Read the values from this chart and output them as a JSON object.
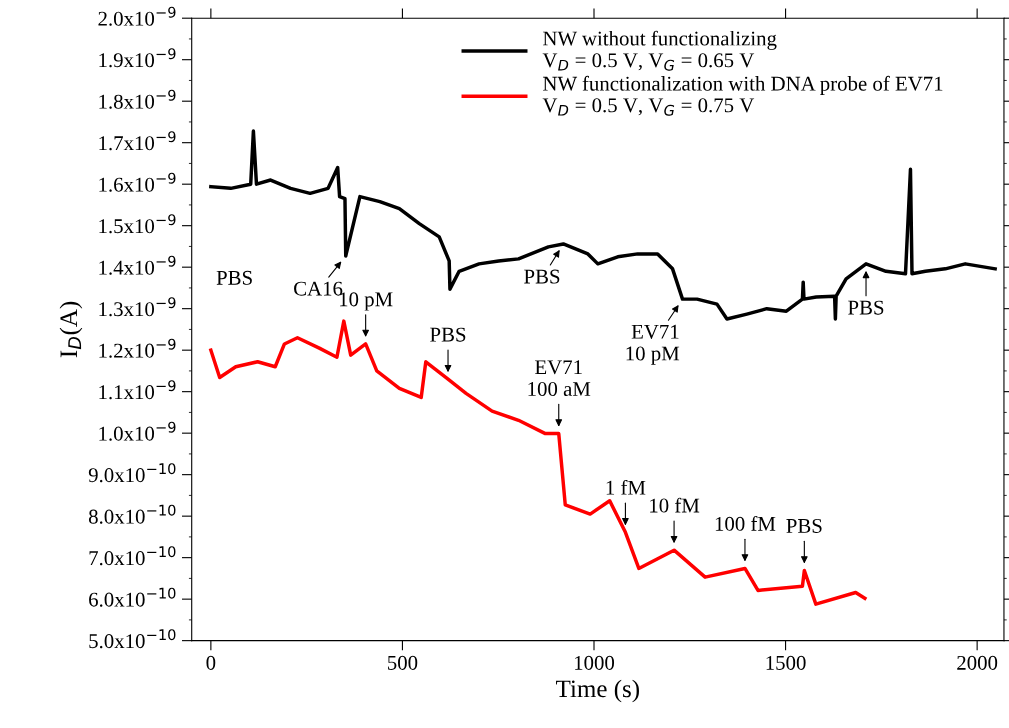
{
  "chart_data": {
    "type": "line",
    "xlabel": "Time (s)",
    "ylabel": "I$_{D}$(A)",
    "xlim": [
      -50,
      2070
    ],
    "xticks": [
      0,
      500,
      1000,
      1500,
      2000
    ],
    "ylim": [
      5e-10,
      2e-09
    ],
    "yticks": [
      {
        "value": 5e-10,
        "label": "5.0x10$^{−10}$"
      },
      {
        "value": 6e-10,
        "label": "6.0x10$^{−10}$"
      },
      {
        "value": 7e-10,
        "label": "7.0x10$^{−10}$"
      },
      {
        "value": 8e-10,
        "label": "8.0x10$^{−10}$"
      },
      {
        "value": 9e-10,
        "label": "9.0x10$^{−10}$"
      },
      {
        "value": 1e-09,
        "label": "1.0x10$^{−9}$"
      },
      {
        "value": 1.1e-09,
        "label": "1.1x10$^{−9}$"
      },
      {
        "value": 1.2e-09,
        "label": "1.2x10$^{−9}$"
      },
      {
        "value": 1.3e-09,
        "label": "1.3x10$^{−9}$"
      },
      {
        "value": 1.4e-09,
        "label": "1.4x10$^{−9}$"
      },
      {
        "value": 1.5e-09,
        "label": "1.5x10$^{−9}$"
      },
      {
        "value": 1.6e-09,
        "label": "1.6x10$^{−9}$"
      },
      {
        "value": 1.7e-09,
        "label": "1.7x10$^{−9}$"
      },
      {
        "value": 1.8e-09,
        "label": "1.8x10$^{−9}$"
      },
      {
        "value": 1.9e-09,
        "label": "1.9x10$^{−9}$"
      },
      {
        "value": 2e-09,
        "label": "2.0x10$^{−9}$"
      }
    ],
    "grid": false,
    "legend": "top",
    "line_style": "solid",
    "marker": "none",
    "series": [
      {
        "name": "NW without functionalizing\nV$_{D}$ = 0.5 V, V$_{G}$ = 0.65 V",
        "color": "#000000",
        "x": [
          0,
          52,
          104,
          111,
          119,
          156,
          208,
          259,
          306,
          331,
          336,
          350,
          352,
          389,
          441,
          492,
          544,
          596,
          622,
          624,
          648,
          700,
          751,
          803,
          881,
          920,
          984,
          1010,
          1062,
          1114,
          1166,
          1205,
          1231,
          1269,
          1321,
          1347,
          1399,
          1451,
          1502,
          1544,
          1546,
          1548,
          1580,
          1628,
          1630,
          1632,
          1658,
          1710,
          1762,
          1813,
          1826,
          1830,
          1865,
          1917,
          1969,
          2047
        ],
        "values": [
          1.594e-09,
          1.59e-09,
          1.6e-09,
          1.728e-09,
          1.6e-09,
          1.61e-09,
          1.59e-09,
          1.578e-09,
          1.59e-09,
          1.64e-09,
          1.57e-09,
          1.565e-09,
          1.427e-09,
          1.57e-09,
          1.558e-09,
          1.541e-09,
          1.505e-09,
          1.473e-09,
          1.415e-09,
          1.347e-09,
          1.39e-09,
          1.408e-09,
          1.415e-09,
          1.42e-09,
          1.449e-09,
          1.456e-09,
          1.432e-09,
          1.408e-09,
          1.425e-09,
          1.432e-09,
          1.432e-09,
          1.396e-09,
          1.323e-09,
          1.323e-09,
          1.311e-09,
          1.275e-09,
          1.287e-09,
          1.3e-09,
          1.294e-09,
          1.323e-09,
          1.364e-09,
          1.323e-09,
          1.328e-09,
          1.33e-09,
          1.275e-09,
          1.33e-09,
          1.372e-09,
          1.408e-09,
          1.39e-09,
          1.384e-09,
          1.636e-09,
          1.384e-09,
          1.39e-09,
          1.396e-09,
          1.408e-09,
          1.396e-09
        ]
      },
      {
        "name": "NW functionalization with DNA probe of EV71\nV$_{D}$ = 0.5 V, V$_{G}$ = 0.75 V",
        "color": "#ff0000",
        "x": [
          0,
          23,
          65,
          122,
          168,
          192,
          226,
          283,
          329,
          347,
          365,
          404,
          433,
          492,
          549,
          561,
          619,
          666,
          734,
          803,
          873,
          908,
          925,
          990,
          1041,
          1082,
          1117,
          1209,
          1290,
          1394,
          1428,
          1544,
          1549,
          1579,
          1683,
          1707
        ],
        "values": [
          1.2e-09,
          1.134e-09,
          1.16e-09,
          1.172e-09,
          1.16e-09,
          1.215e-09,
          1.23e-09,
          1.205e-09,
          1.183e-09,
          1.27e-09,
          1.188e-09,
          1.215e-09,
          1.15e-09,
          1.108e-09,
          1.086e-09,
          1.172e-09,
          1.13e-09,
          1.096e-09,
          1.053e-09,
          1.031e-09,
          9.99e-10,
          9.99e-10,
          8.27e-10,
          8.05e-10,
          8.37e-10,
          7.61e-10,
          6.74e-10,
          7.18e-10,
          6.53e-10,
          6.74e-10,
          6.21e-10,
          6.31e-10,
          6.69e-10,
          5.88e-10,
          6.16e-10,
          6.02e-10
        ]
      }
    ],
    "annotations": [
      "PBS",
      {
        "text": "CA16",
        "x": 352,
        "y": 1.427e-09
      },
      {
        "text": "10 pM",
        "x": 404,
        "y": 1.215e-09
      },
      {
        "text": "PBS",
        "x": 619,
        "y": 1.13e-09
      },
      {
        "text": "PBS",
        "x": 920,
        "y": 1.456e-09
      },
      {
        "text": "EV71\n100 aM",
        "x": 908,
        "y": 9.99e-10
      },
      {
        "text": "EV71\n10 pM",
        "x": 1231,
        "y": 1.323e-09
      },
      {
        "text": "PBS",
        "x": 1710,
        "y": 1.408e-09
      },
      {
        "text": "1 fM",
        "x": 1082,
        "y": 7.61e-10
      },
      {
        "text": "10 fM",
        "x": 1209,
        "y": 7.18e-10
      },
      {
        "text": "100 fM",
        "x": 1394,
        "y": 6.74e-10
      },
      {
        "text": "PBS",
        "x": 1549,
        "y": 6.69e-10
      }
    ]
  }
}
